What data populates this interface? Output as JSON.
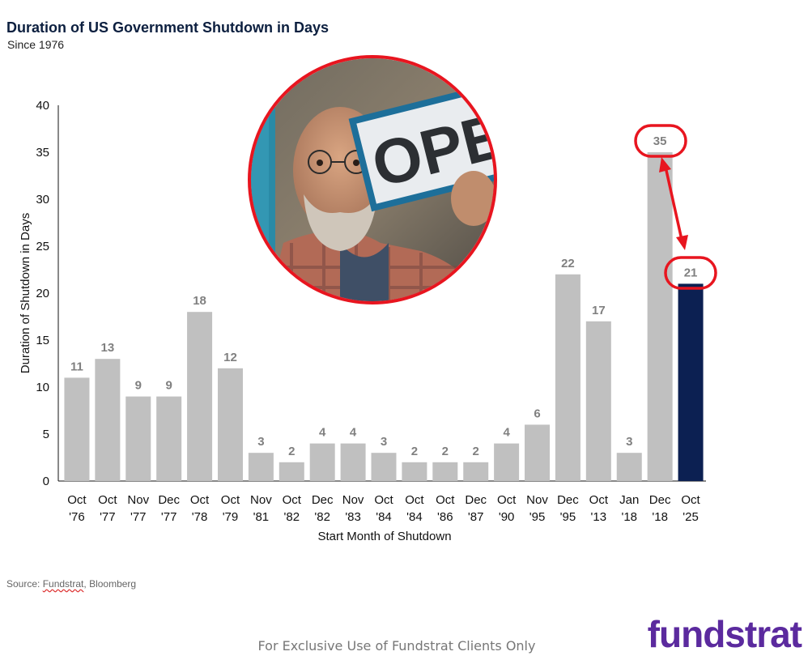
{
  "header": {
    "title": "Duration of US Government Shutdown in Days",
    "subtitle": "Since 1976"
  },
  "source": {
    "prefix": "Source: ",
    "brand": "Fundstrat",
    "rest": ", Bloomberg"
  },
  "footer": {
    "disclaimer": "For Exclusive Use of Fundstrat Clients Only",
    "logo": "fundstrat"
  },
  "colors": {
    "bar": "#c0c0c0",
    "highlight_bar": "#0c2052",
    "highlight_label": "#0c2052",
    "annotation": "#e8151f",
    "value_label": "#808080",
    "logo": "#5b2a9e"
  },
  "photo": {
    "sign_text": "OPE"
  },
  "chart_data": {
    "type": "bar",
    "title": "Duration of US Government Shutdown in Days",
    "subtitle": "Since 1976",
    "xlabel": "Start Month of Shutdown",
    "ylabel": "Duration of Shutdown in Days",
    "ylim": [
      0,
      40
    ],
    "yticks": [
      0,
      5,
      10,
      15,
      20,
      25,
      30,
      35,
      40
    ],
    "grid": false,
    "categories": [
      [
        "Oct",
        "'76"
      ],
      [
        "Oct",
        "'77"
      ],
      [
        "Nov",
        "'77"
      ],
      [
        "Dec",
        "'77"
      ],
      [
        "Oct",
        "'78"
      ],
      [
        "Oct",
        "'79"
      ],
      [
        "Nov",
        "'81"
      ],
      [
        "Oct",
        "'82"
      ],
      [
        "Dec",
        "'82"
      ],
      [
        "Nov",
        "'83"
      ],
      [
        "Oct",
        "'84"
      ],
      [
        "Oct",
        "'84"
      ],
      [
        "Oct",
        "'86"
      ],
      [
        "Dec",
        "'87"
      ],
      [
        "Oct",
        "'90"
      ],
      [
        "Nov",
        "'95"
      ],
      [
        "Dec",
        "'95"
      ],
      [
        "Oct",
        "'13"
      ],
      [
        "Jan",
        "'18"
      ],
      [
        "Dec",
        "'18"
      ],
      [
        "Oct",
        "'25"
      ]
    ],
    "values": [
      11,
      13,
      9,
      9,
      18,
      12,
      3,
      2,
      4,
      4,
      3,
      2,
      2,
      2,
      4,
      6,
      22,
      17,
      3,
      35,
      21
    ],
    "highlight_index": 20,
    "annotations": {
      "circled_values": [
        35,
        21
      ],
      "arrow": "from 35 (Dec '18) to 21 (Oct '25)"
    }
  }
}
